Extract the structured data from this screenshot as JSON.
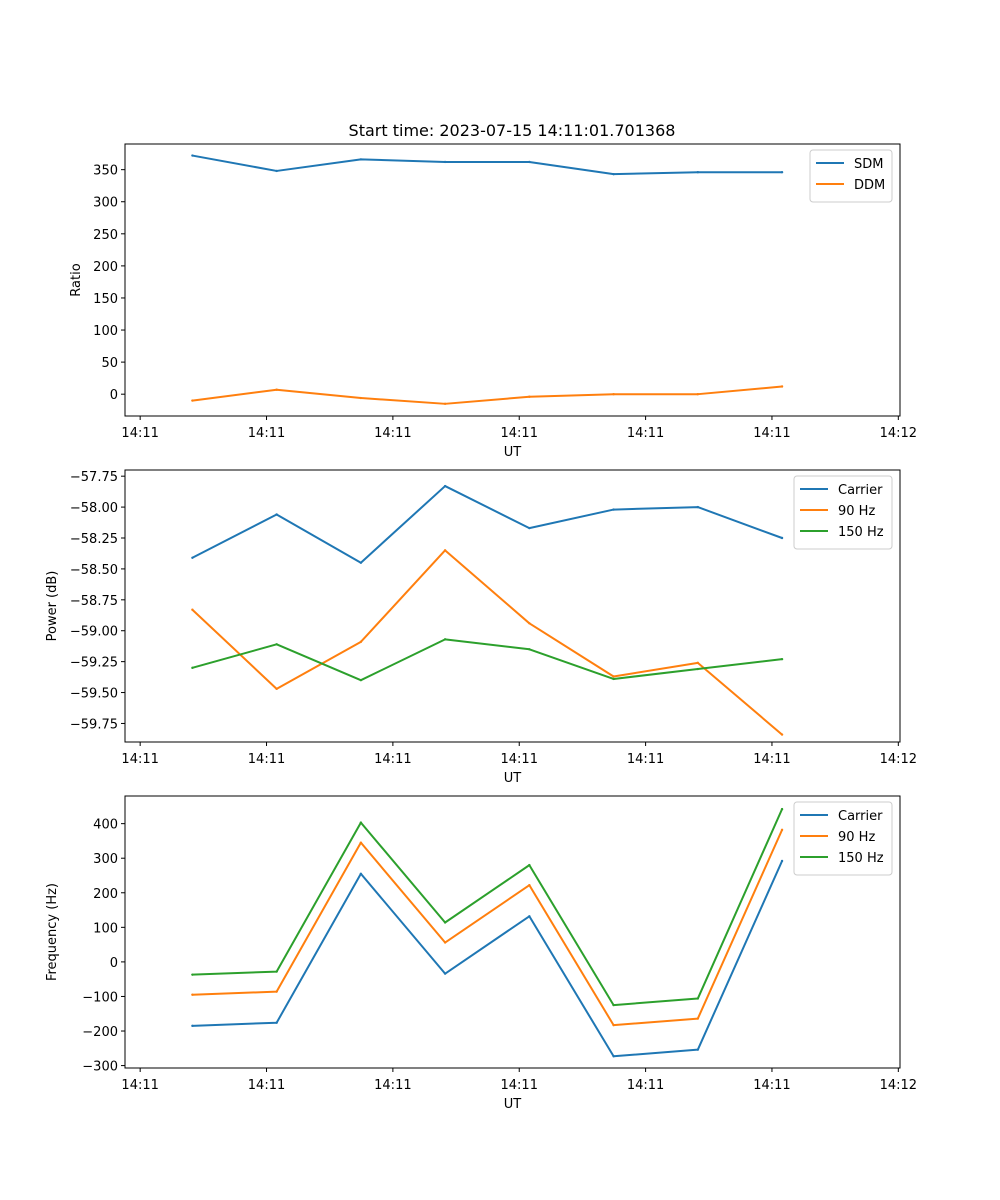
{
  "figure": {
    "title": "Start time: 2023-07-15 14:11:01.701368"
  },
  "colors": {
    "c0": "#1f77b4",
    "c1": "#ff7f0e",
    "c2": "#2ca02c"
  },
  "chart_data": [
    {
      "type": "line",
      "title": "Start time: 2023-07-15 14:11:01.701368",
      "xlabel": "UT",
      "ylabel": "Ratio",
      "x": [
        1,
        2,
        3,
        4,
        5,
        6,
        7,
        8
      ],
      "xlim": [
        0.2,
        9.4
      ],
      "xticks": [
        0.38,
        1.88,
        3.38,
        4.88,
        6.38,
        7.88,
        9.38
      ],
      "xtick_labels": [
        "14:11",
        "14:11",
        "14:11",
        "14:11",
        "14:11",
        "14:11",
        "14:12"
      ],
      "ylim": [
        -34,
        390
      ],
      "yticks": [
        0,
        50,
        100,
        150,
        200,
        250,
        300,
        350
      ],
      "ytick_labels": [
        "0",
        "50",
        "100",
        "150",
        "200",
        "250",
        "300",
        "350"
      ],
      "legend_position": "upper-right",
      "series": [
        {
          "name": "SDM",
          "color": "#1f77b4",
          "values": [
            372,
            348,
            366,
            362,
            362,
            343,
            346,
            346
          ]
        },
        {
          "name": "DDM",
          "color": "#ff7f0e",
          "values": [
            -10,
            7,
            -6,
            -15,
            -4,
            0,
            0,
            12
          ]
        }
      ]
    },
    {
      "type": "line",
      "xlabel": "UT",
      "ylabel": "Power (dB)",
      "x": [
        1,
        2,
        3,
        4,
        5,
        6,
        7,
        8
      ],
      "xlim": [
        0.2,
        9.4
      ],
      "xticks": [
        0.38,
        1.88,
        3.38,
        4.88,
        6.38,
        7.88,
        9.38
      ],
      "xtick_labels": [
        "14:11",
        "14:11",
        "14:11",
        "14:11",
        "14:11",
        "14:11",
        "14:12"
      ],
      "ylim": [
        -59.9,
        -57.7
      ],
      "yticks": [
        -59.75,
        -59.5,
        -59.25,
        -59.0,
        -58.75,
        -58.5,
        -58.25,
        -58.0,
        -57.75
      ],
      "ytick_labels": [
        "−59.75",
        "−59.50",
        "−59.25",
        "−59.00",
        "−58.75",
        "−58.50",
        "−58.25",
        "−58.00",
        "−57.75"
      ],
      "legend_position": "upper-right",
      "series": [
        {
          "name": "Carrier",
          "color": "#1f77b4",
          "values": [
            -58.41,
            -58.06,
            -58.45,
            -57.83,
            -58.17,
            -58.02,
            -58.0,
            -58.25
          ]
        },
        {
          "name": "90 Hz",
          "color": "#ff7f0e",
          "values": [
            -58.83,
            -59.47,
            -59.09,
            -58.35,
            -58.94,
            -59.37,
            -59.26,
            -59.84
          ]
        },
        {
          "name": "150 Hz",
          "color": "#2ca02c",
          "values": [
            -59.3,
            -59.11,
            -59.4,
            -59.07,
            -59.15,
            -59.39,
            -59.31,
            -59.23
          ]
        }
      ]
    },
    {
      "type": "line",
      "xlabel": "UT",
      "ylabel": "Frequency (Hz)",
      "x": [
        1,
        2,
        3,
        4,
        5,
        6,
        7,
        8
      ],
      "xlim": [
        0.2,
        9.4
      ],
      "xticks": [
        0.38,
        1.88,
        3.38,
        4.88,
        6.38,
        7.88,
        9.38
      ],
      "xtick_labels": [
        "14:11",
        "14:11",
        "14:11",
        "14:11",
        "14:11",
        "14:11",
        "14:12"
      ],
      "ylim": [
        -307,
        480
      ],
      "yticks": [
        -300,
        -200,
        -100,
        0,
        100,
        200,
        300,
        400
      ],
      "ytick_labels": [
        "−300",
        "−200",
        "−100",
        "0",
        "100",
        "200",
        "300",
        "400"
      ],
      "legend_position": "upper-right",
      "series": [
        {
          "name": "Carrier",
          "color": "#1f77b4",
          "values": [
            -185,
            -176,
            255,
            -34,
            132,
            -273,
            -254,
            292
          ]
        },
        {
          "name": "90 Hz",
          "color": "#ff7f0e",
          "values": [
            -95,
            -86,
            345,
            56,
            222,
            -183,
            -164,
            382
          ]
        },
        {
          "name": "150 Hz",
          "color": "#2ca02c",
          "values": [
            -37,
            -28,
            403,
            114,
            280,
            -125,
            -106,
            442
          ]
        }
      ]
    }
  ]
}
